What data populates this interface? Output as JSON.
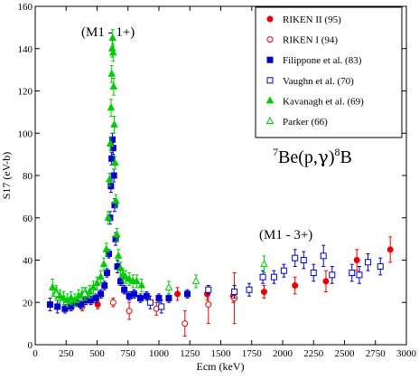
{
  "chart_data": {
    "type": "scatter",
    "title": "",
    "xlabel": "Ecm (keV)",
    "ylabel": "S17 (eV-b)",
    "xlim": [
      0,
      3000
    ],
    "ylim": [
      0,
      160
    ],
    "xticks": [
      0,
      250,
      500,
      750,
      1000,
      1250,
      1500,
      1750,
      2000,
      2250,
      2500,
      2750,
      3000
    ],
    "yticks": [
      0,
      20,
      40,
      60,
      80,
      100,
      120,
      140,
      160
    ],
    "grid": false,
    "legend_position": "top-right",
    "annotations": {
      "resonance_1": "(M1 - 1+)",
      "resonance_2": "(M1 - 3+)",
      "reaction_parts": [
        "7",
        "Be(p,",
        "γ",
        ")",
        "8",
        "B"
      ]
    },
    "series": [
      {
        "name": "RIKEN II (95)",
        "color": "#ee0000",
        "marker": "circle-filled",
        "points": [
          {
            "x": 505,
            "y": 19,
            "err": 2
          },
          {
            "x": 1150,
            "y": 24,
            "err": 3
          },
          {
            "x": 1390,
            "y": 24,
            "err": 3
          },
          {
            "x": 1600,
            "y": 23,
            "err": 3
          },
          {
            "x": 1850,
            "y": 25,
            "err": 3
          },
          {
            "x": 2100,
            "y": 28,
            "err": 4
          },
          {
            "x": 2350,
            "y": 30,
            "err": 5
          },
          {
            "x": 2600,
            "y": 40,
            "err": 5
          },
          {
            "x": 2870,
            "y": 45,
            "err": 6
          }
        ]
      },
      {
        "name": "RIKEN I (94)",
        "color": "#ee0000",
        "marker": "circle-open",
        "points": [
          {
            "x": 380,
            "y": 18,
            "err": 2
          },
          {
            "x": 630,
            "y": 20,
            "err": 2
          },
          {
            "x": 760,
            "y": 16,
            "err": 4
          },
          {
            "x": 980,
            "y": 17,
            "err": 3
          },
          {
            "x": 1210,
            "y": 10,
            "err": 6
          },
          {
            "x": 1400,
            "y": 19,
            "err": 9
          },
          {
            "x": 1610,
            "y": 22,
            "err": 12
          }
        ]
      },
      {
        "name": "Filippone et al. (83)",
        "color": "#0000cc",
        "marker": "square-filled",
        "points": [
          {
            "x": 120,
            "y": 19,
            "err": 3
          },
          {
            "x": 180,
            "y": 18,
            "err": 3
          },
          {
            "x": 240,
            "y": 17,
            "err": 2
          },
          {
            "x": 290,
            "y": 18,
            "err": 2
          },
          {
            "x": 330,
            "y": 20,
            "err": 2
          },
          {
            "x": 370,
            "y": 19,
            "err": 2
          },
          {
            "x": 410,
            "y": 21,
            "err": 2
          },
          {
            "x": 450,
            "y": 21,
            "err": 2
          },
          {
            "x": 490,
            "y": 22,
            "err": 2
          },
          {
            "x": 530,
            "y": 24,
            "err": 2
          },
          {
            "x": 560,
            "y": 28,
            "err": 2
          },
          {
            "x": 580,
            "y": 34,
            "err": 2
          },
          {
            "x": 595,
            "y": 43,
            "err": 2
          },
          {
            "x": 605,
            "y": 60,
            "err": 3
          },
          {
            "x": 612,
            "y": 75,
            "err": 3
          },
          {
            "x": 618,
            "y": 88,
            "err": 3
          },
          {
            "x": 624,
            "y": 97,
            "err": 3
          },
          {
            "x": 630,
            "y": 93,
            "err": 3
          },
          {
            "x": 636,
            "y": 80,
            "err": 3
          },
          {
            "x": 642,
            "y": 66,
            "err": 3
          },
          {
            "x": 650,
            "y": 50,
            "err": 3
          },
          {
            "x": 665,
            "y": 37,
            "err": 3
          },
          {
            "x": 690,
            "y": 30,
            "err": 2
          },
          {
            "x": 720,
            "y": 26,
            "err": 2
          },
          {
            "x": 760,
            "y": 23,
            "err": 2
          },
          {
            "x": 800,
            "y": 24,
            "err": 2
          },
          {
            "x": 850,
            "y": 22,
            "err": 2
          },
          {
            "x": 900,
            "y": 23,
            "err": 2
          },
          {
            "x": 1000,
            "y": 22,
            "err": 2
          },
          {
            "x": 1080,
            "y": 22,
            "err": 2
          },
          {
            "x": 1230,
            "y": 24,
            "err": 2
          }
        ]
      },
      {
        "name": "Vaughn et al. (70)",
        "color": "#0000cc",
        "marker": "square-open",
        "points": [
          {
            "x": 930,
            "y": 20,
            "err": 3
          },
          {
            "x": 1020,
            "y": 18,
            "err": 3
          },
          {
            "x": 1400,
            "y": 26,
            "err": 2
          },
          {
            "x": 1610,
            "y": 25,
            "err": 3
          },
          {
            "x": 1730,
            "y": 26,
            "err": 3
          },
          {
            "x": 1840,
            "y": 32,
            "err": 3
          },
          {
            "x": 1930,
            "y": 32,
            "err": 3
          },
          {
            "x": 2010,
            "y": 35,
            "err": 3
          },
          {
            "x": 2100,
            "y": 41,
            "err": 4
          },
          {
            "x": 2170,
            "y": 40,
            "err": 4
          },
          {
            "x": 2250,
            "y": 34,
            "err": 4
          },
          {
            "x": 2330,
            "y": 42,
            "err": 5
          },
          {
            "x": 2400,
            "y": 33,
            "err": 4
          },
          {
            "x": 2560,
            "y": 34,
            "err": 4
          },
          {
            "x": 2620,
            "y": 33,
            "err": 4
          },
          {
            "x": 2690,
            "y": 39,
            "err": 4
          },
          {
            "x": 2790,
            "y": 37,
            "err": 4
          }
        ]
      },
      {
        "name": "Kavanagh et al. (69)",
        "color": "#00cc00",
        "marker": "triangle-filled",
        "points": [
          {
            "x": 140,
            "y": 27,
            "err": 4
          },
          {
            "x": 170,
            "y": 25,
            "err": 3
          },
          {
            "x": 200,
            "y": 23,
            "err": 3
          },
          {
            "x": 230,
            "y": 22,
            "err": 3
          },
          {
            "x": 260,
            "y": 21,
            "err": 3
          },
          {
            "x": 290,
            "y": 22,
            "err": 3
          },
          {
            "x": 320,
            "y": 21,
            "err": 3
          },
          {
            "x": 350,
            "y": 23,
            "err": 3
          },
          {
            "x": 380,
            "y": 24,
            "err": 3
          },
          {
            "x": 410,
            "y": 24,
            "err": 3
          },
          {
            "x": 440,
            "y": 25,
            "err": 3
          },
          {
            "x": 470,
            "y": 27,
            "err": 3
          },
          {
            "x": 500,
            "y": 29,
            "err": 3
          },
          {
            "x": 530,
            "y": 32,
            "err": 3
          },
          {
            "x": 555,
            "y": 38,
            "err": 3
          },
          {
            "x": 575,
            "y": 45,
            "err": 3
          },
          {
            "x": 590,
            "y": 60,
            "err": 3
          },
          {
            "x": 600,
            "y": 78,
            "err": 3
          },
          {
            "x": 607,
            "y": 95,
            "err": 3
          },
          {
            "x": 613,
            "y": 112,
            "err": 4
          },
          {
            "x": 618,
            "y": 128,
            "err": 4
          },
          {
            "x": 622,
            "y": 140,
            "err": 4
          },
          {
            "x": 626,
            "y": 145,
            "err": 4
          },
          {
            "x": 630,
            "y": 138,
            "err": 4
          },
          {
            "x": 634,
            "y": 122,
            "err": 4
          },
          {
            "x": 639,
            "y": 104,
            "err": 4
          },
          {
            "x": 645,
            "y": 86,
            "err": 3
          },
          {
            "x": 652,
            "y": 68,
            "err": 3
          },
          {
            "x": 660,
            "y": 52,
            "err": 3
          },
          {
            "x": 672,
            "y": 42,
            "err": 3
          },
          {
            "x": 690,
            "y": 36,
            "err": 3
          },
          {
            "x": 710,
            "y": 33,
            "err": 3
          },
          {
            "x": 730,
            "y": 32,
            "err": 3
          },
          {
            "x": 760,
            "y": 31,
            "err": 3
          },
          {
            "x": 790,
            "y": 30,
            "err": 3
          },
          {
            "x": 820,
            "y": 30,
            "err": 3
          },
          {
            "x": 860,
            "y": 28,
            "err": 3
          }
        ]
      },
      {
        "name": "Parker (66)",
        "color": "#00cc00",
        "marker": "triangle-open",
        "points": [
          {
            "x": 170,
            "y": 24,
            "err": 3
          },
          {
            "x": 400,
            "y": 24,
            "err": 3
          },
          {
            "x": 1080,
            "y": 27,
            "err": 3
          },
          {
            "x": 1300,
            "y": 30,
            "err": 3
          },
          {
            "x": 1850,
            "y": 38,
            "err": 4
          }
        ]
      }
    ]
  }
}
